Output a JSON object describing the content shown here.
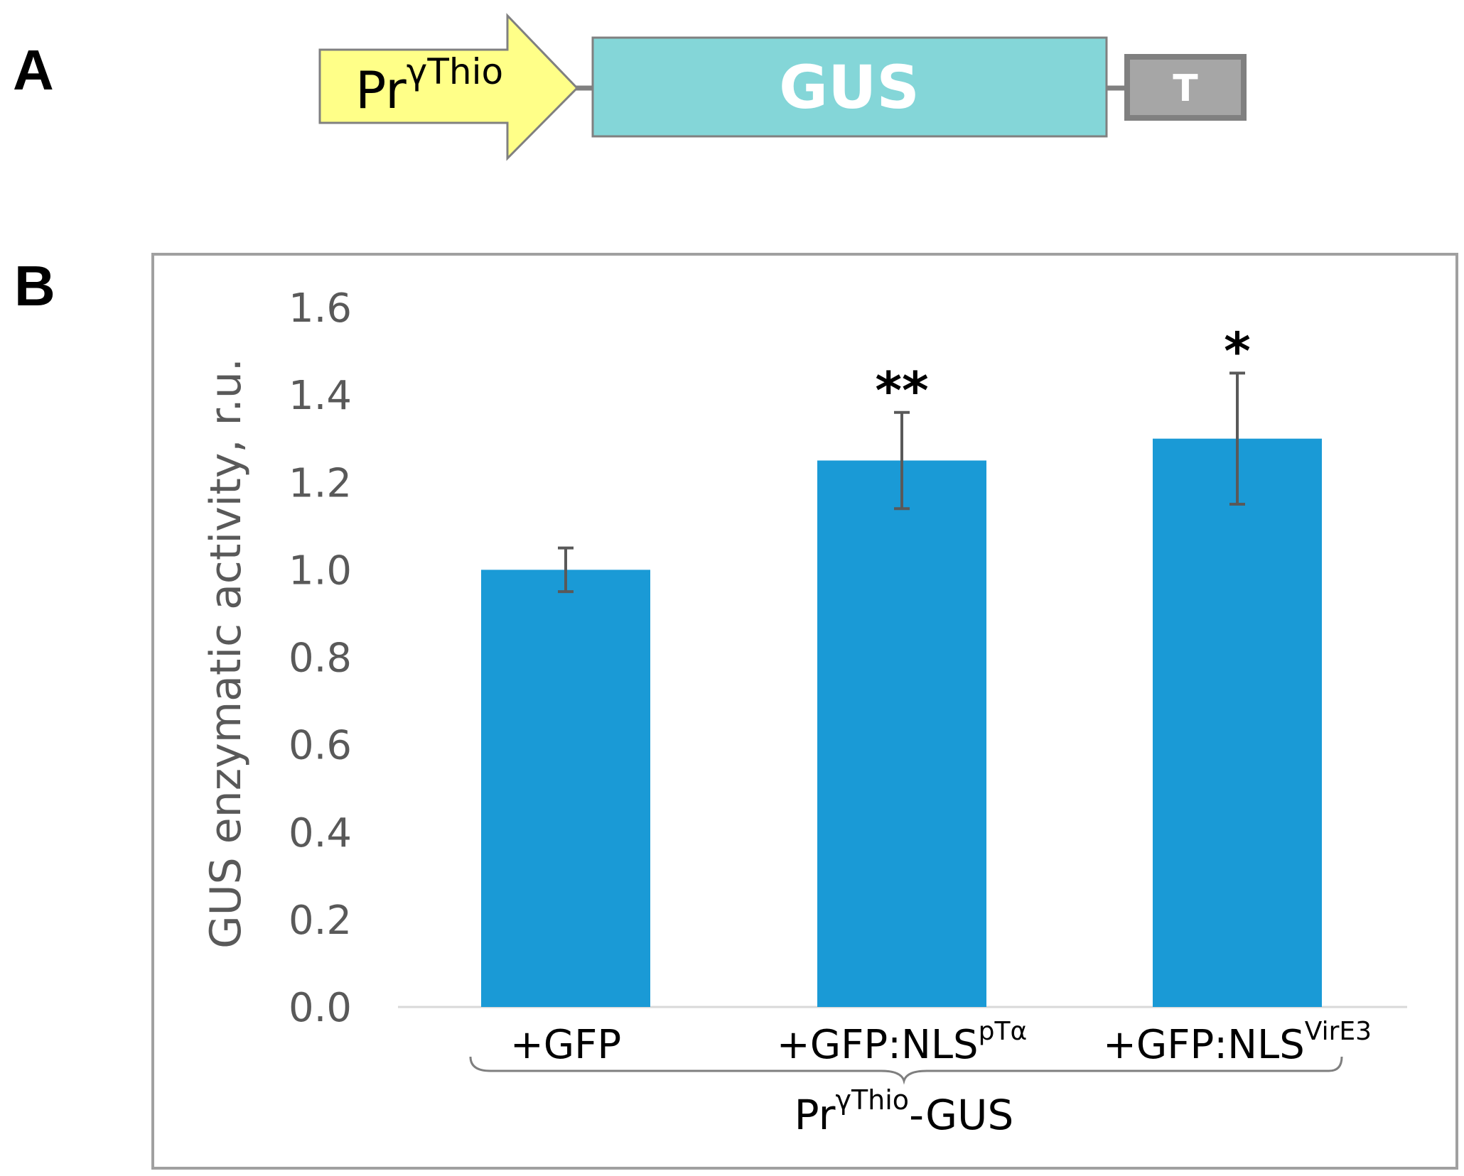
{
  "panels": {
    "a_letter": "A",
    "b_letter": "B"
  },
  "construct": {
    "promoter_main": "Pr",
    "promoter_sup": "γThio",
    "gene": "GUS",
    "terminator": "T",
    "colors": {
      "promoter": "#ffff88",
      "gene": "#84d6d8",
      "terminator": "#a6a6a6",
      "outline": "#808080"
    }
  },
  "chart_data": {
    "type": "bar",
    "categories": [
      {
        "main": "+GFP",
        "sup": ""
      },
      {
        "main": "+GFP:NLS",
        "sup": "pTα"
      },
      {
        "main": "+GFP:NLS",
        "sup": "VirE3"
      }
    ],
    "values": [
      1.0,
      1.25,
      1.3
    ],
    "errors": [
      0.05,
      0.11,
      0.15
    ],
    "significance": [
      "",
      "**",
      "*"
    ],
    "ylabel": "GUS enzymatic activity, r.u.",
    "ylim": [
      0,
      1.6
    ],
    "yticks": [
      "0.0",
      "0.2",
      "0.4",
      "0.6",
      "0.8",
      "1.0",
      "1.2",
      "1.4",
      "1.6"
    ],
    "group_label_main": "Pr",
    "group_label_sup": "γThio",
    "group_label_suffix": "-GUS",
    "bar_color": "#1a9ad6",
    "grid": false
  }
}
